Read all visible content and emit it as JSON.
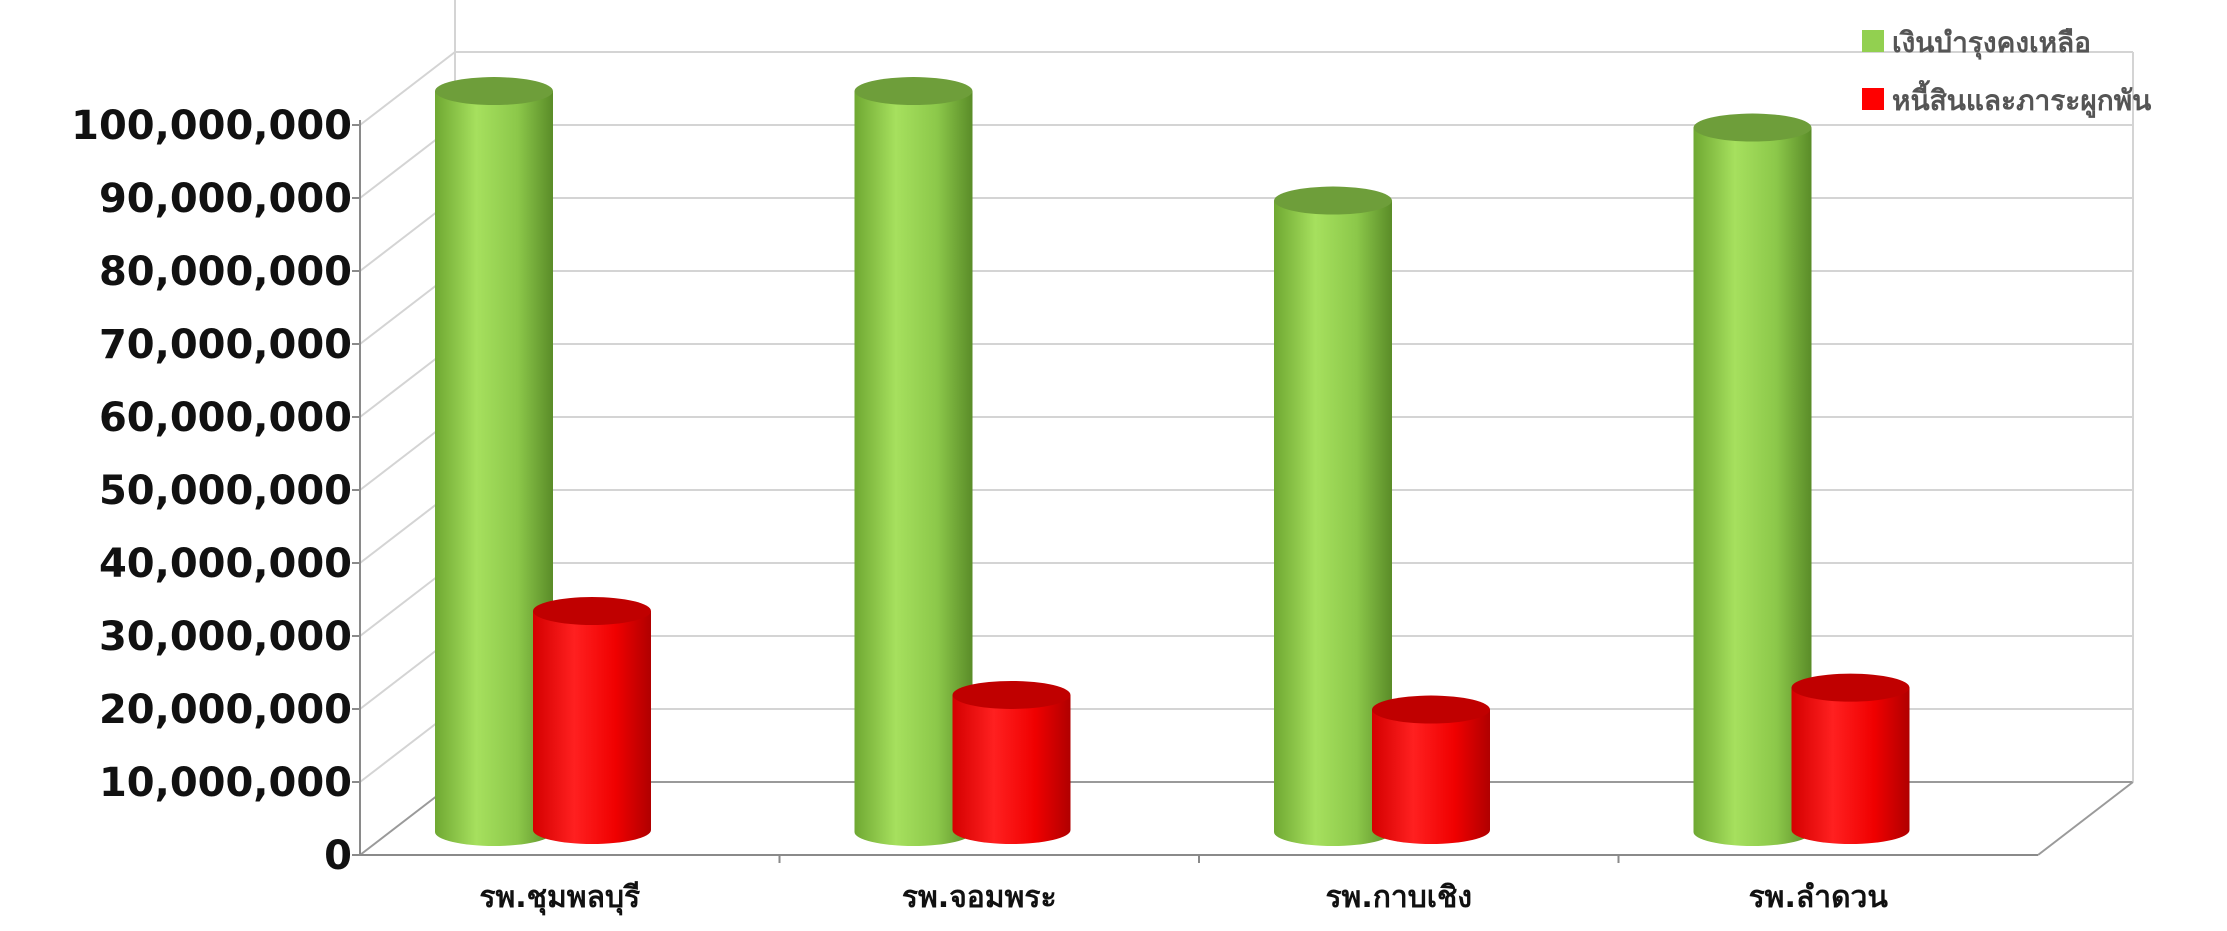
{
  "chart_data": {
    "type": "bar",
    "style": "3d-cylinder",
    "categories": [
      "รพ.ชุมพลบุรี",
      "รพ.จอมพระ",
      "รพ.กาบเชิง",
      "รพ.ลำดวน"
    ],
    "series": [
      {
        "name": "เงินบำรุงคงเหลือ",
        "color": "#92d050",
        "values": [
          101500000,
          101500000,
          86500000,
          96500000
        ]
      },
      {
        "name": "หนี้สินและภาระผูกพัน",
        "color": "#ff0000",
        "values": [
          30000000,
          18500000,
          16500000,
          19500000
        ]
      }
    ],
    "y_ticks": [
      "0",
      "10,000,000",
      "20,000,000",
      "30,000,000",
      "40,000,000",
      "50,000,000",
      "60,000,000",
      "70,000,000",
      "80,000,000",
      "90,000,000",
      "100,000,000"
    ],
    "ylim": [
      0,
      100000000
    ],
    "grid": true,
    "legend_position": "top-right"
  }
}
